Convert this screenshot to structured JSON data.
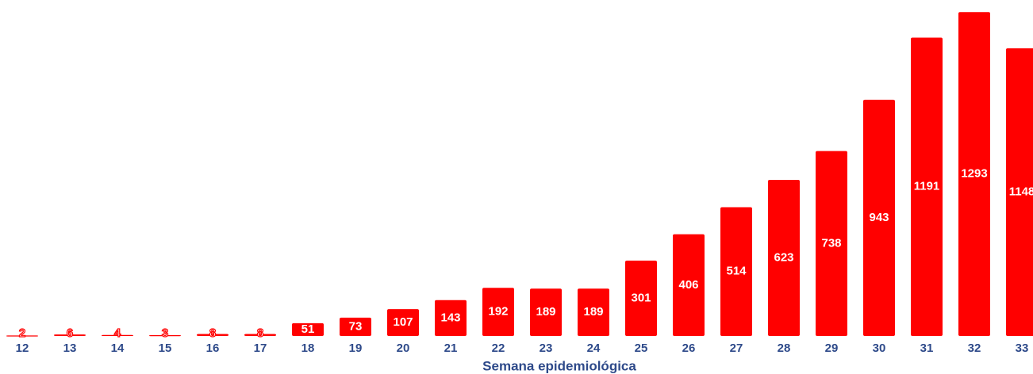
{
  "chart_data": {
    "type": "bar",
    "x_label": "Semana epidemiológica",
    "categories": [
      "12",
      "13",
      "14",
      "15",
      "16",
      "17",
      "18",
      "19",
      "20",
      "21",
      "22",
      "23",
      "24",
      "25",
      "26",
      "27",
      "28",
      "29",
      "30",
      "31",
      "32",
      "33"
    ],
    "values": [
      2,
      6,
      4,
      3,
      8,
      8,
      51,
      73,
      107,
      143,
      192,
      189,
      189,
      301,
      406,
      514,
      623,
      738,
      943,
      1191,
      1293,
      1148
    ],
    "color": "#ff0000",
    "ylim": [
      0,
      1300
    ]
  }
}
